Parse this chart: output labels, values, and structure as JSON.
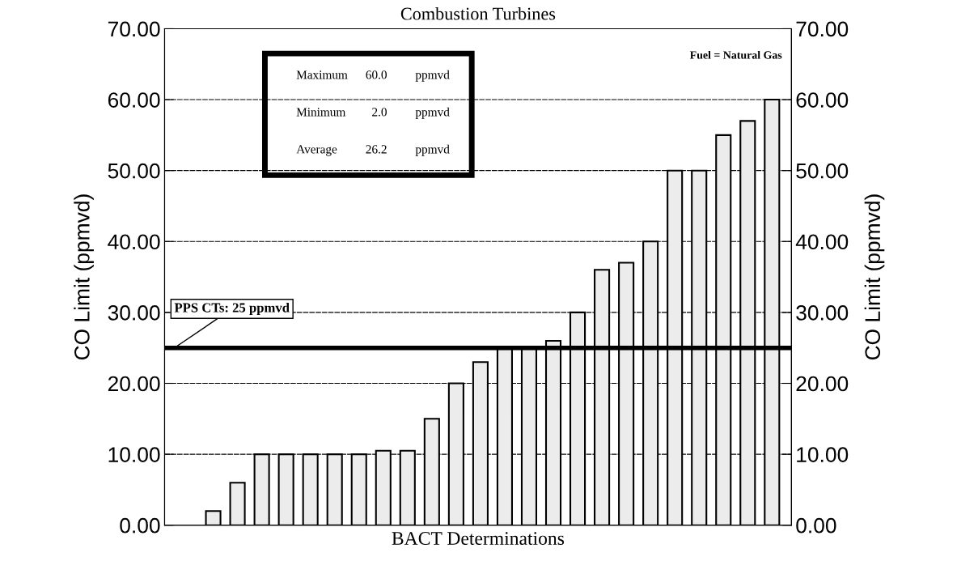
{
  "chart_data": {
    "type": "bar",
    "title": "Combustion Turbines",
    "xlabel": "BACT Determinations",
    "ylabel": "CO Limit (ppmvd)",
    "y2label": "CO Limit (ppmvd)",
    "categories": [
      null,
      null,
      null,
      null,
      null,
      null,
      null,
      null,
      null,
      null,
      null,
      null,
      null,
      null,
      null,
      null,
      null,
      null,
      null,
      null,
      null,
      null,
      null,
      null
    ],
    "values": [
      2,
      6,
      10,
      10,
      10,
      10,
      10,
      10.5,
      10.5,
      15,
      20,
      23,
      25,
      25,
      26,
      30,
      36,
      37,
      40,
      50,
      50,
      55,
      57,
      60
    ],
    "color": "#ececec",
    "ylim": [
      0,
      70
    ],
    "yticks": [
      {
        "value": 0,
        "label": "0.00"
      },
      {
        "value": 10,
        "label": "10.00"
      },
      {
        "value": 20,
        "label": "20.00"
      },
      {
        "value": 30,
        "label": "30.00"
      },
      {
        "value": 40,
        "label": "40.00"
      },
      {
        "value": 50,
        "label": "50.00"
      },
      {
        "value": 60,
        "label": "60.00"
      },
      {
        "value": 70,
        "label": "70.00"
      }
    ],
    "y2lim": [
      0,
      70
    ],
    "y2ticks": [
      {
        "value": 0,
        "label": "0.00"
      },
      {
        "value": 10,
        "label": "10.00"
      },
      {
        "value": 20,
        "label": "20.00"
      },
      {
        "value": 30,
        "label": "30.00"
      },
      {
        "value": 40,
        "label": "40.00"
      },
      {
        "value": 50,
        "label": "50.00"
      },
      {
        "value": 60,
        "label": "60.00"
      },
      {
        "value": 70,
        "label": "70.00"
      }
    ],
    "grid": "y",
    "ref_lines": [
      {
        "axis": "y",
        "value": 25,
        "label": "PPS CTs: 25 ppmvd",
        "color": "#000000"
      }
    ],
    "annotations": [
      "Maximum",
      "60.0",
      "ppmvd",
      "Minimum",
      "2.0",
      "ppmvd",
      "Average",
      "26.2",
      "ppmvd",
      "Fuel = Natural Gas"
    ]
  }
}
